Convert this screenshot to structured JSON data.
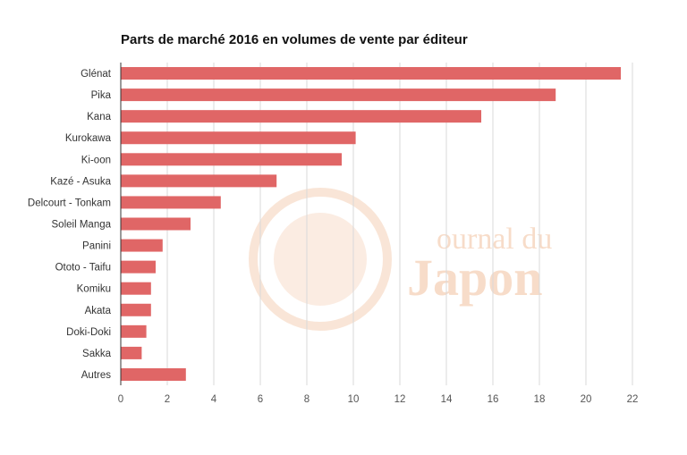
{
  "chart_data": {
    "type": "bar",
    "orientation": "horizontal",
    "title": "Parts de marché 2016 en volumes de vente par éditeur",
    "xlabel": "",
    "ylabel": "",
    "categories": [
      "Glénat",
      "Pika",
      "Kana",
      "Kurokawa",
      "Ki-oon",
      "Kazé - Asuka",
      "Delcourt - Tonkam",
      "Soleil Manga",
      "Panini",
      "Ototo - Taifu",
      "Komiku",
      "Akata",
      "Doki-Doki",
      "Sakka",
      "Autres"
    ],
    "values": [
      21.5,
      18.7,
      15.5,
      10.1,
      9.5,
      6.7,
      4.3,
      3.0,
      1.8,
      1.5,
      1.3,
      1.3,
      1.1,
      0.9,
      2.8
    ],
    "xlim": [
      0,
      22
    ],
    "xticks": [
      0,
      2,
      4,
      6,
      8,
      10,
      12,
      14,
      16,
      18,
      20,
      22
    ],
    "grid": true,
    "legend": "none",
    "bar_color": "#e06666"
  },
  "watermark": {
    "line1": "ournal du",
    "line2": "Japon",
    "color": "#f7d9c4"
  }
}
